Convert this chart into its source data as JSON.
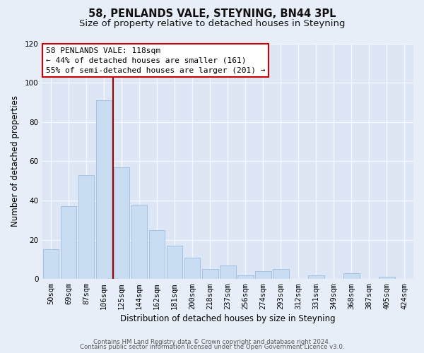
{
  "title": "58, PENLANDS VALE, STEYNING, BN44 3PL",
  "subtitle": "Size of property relative to detached houses in Steyning",
  "xlabel": "Distribution of detached houses by size in Steyning",
  "ylabel": "Number of detached properties",
  "bar_labels": [
    "50sqm",
    "69sqm",
    "87sqm",
    "106sqm",
    "125sqm",
    "144sqm",
    "162sqm",
    "181sqm",
    "200sqm",
    "218sqm",
    "237sqm",
    "256sqm",
    "274sqm",
    "293sqm",
    "312sqm",
    "331sqm",
    "349sqm",
    "368sqm",
    "387sqm",
    "405sqm",
    "424sqm"
  ],
  "bar_values": [
    15,
    37,
    53,
    91,
    57,
    38,
    25,
    17,
    11,
    5,
    7,
    2,
    4,
    5,
    0,
    2,
    0,
    3,
    0,
    1,
    0
  ],
  "bar_color": "#c8ddf2",
  "bar_edge_color": "#9dbde0",
  "vline_index": 3.5,
  "vline_color": "#aa0000",
  "annotation_title": "58 PENLANDS VALE: 118sqm",
  "annotation_line1": "← 44% of detached houses are smaller (161)",
  "annotation_line2": "55% of semi-detached houses are larger (201) →",
  "annotation_box_facecolor": "#ffffff",
  "annotation_box_edgecolor": "#cc0000",
  "ylim": [
    0,
    120
  ],
  "yticks": [
    0,
    20,
    40,
    60,
    80,
    100,
    120
  ],
  "footer1": "Contains HM Land Registry data © Crown copyright and database right 2024.",
  "footer2": "Contains public sector information licensed under the Open Government Licence v3.0.",
  "bg_color": "#e8eef8",
  "plot_bg_color": "#dde6f5",
  "grid_color": "#f5f8ff",
  "title_fontsize": 10.5,
  "subtitle_fontsize": 9.5,
  "axis_label_fontsize": 8.5,
  "tick_fontsize": 7.5,
  "annot_fontsize": 8.0,
  "footer_fontsize": 6.2
}
